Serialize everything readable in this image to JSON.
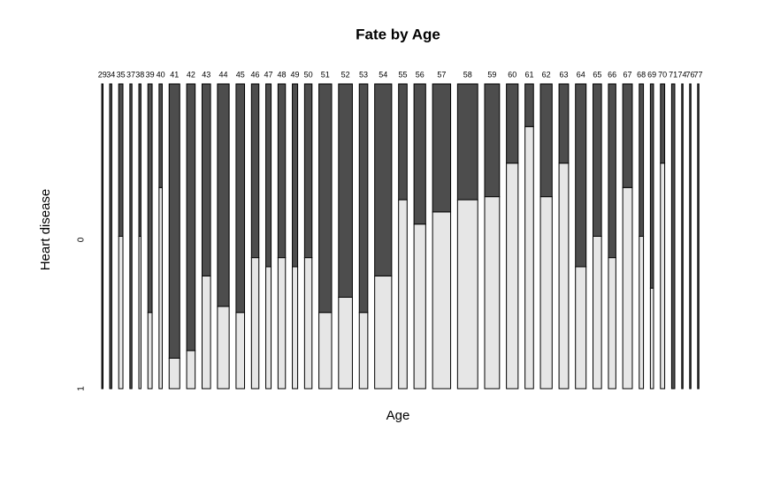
{
  "chart_data": {
    "type": "spine",
    "title": "Fate by Age",
    "x_label": "Age",
    "y_label": "Heart disease",
    "categories": [
      "29",
      "34",
      "35",
      "37",
      "38",
      "39",
      "40",
      "41",
      "42",
      "43",
      "44",
      "45",
      "46",
      "47",
      "48",
      "49",
      "50",
      "51",
      "52",
      "53",
      "54",
      "55",
      "56",
      "57",
      "58",
      "59",
      "60",
      "61",
      "62",
      "63",
      "64",
      "65",
      "66",
      "67",
      "68",
      "69",
      "70",
      "71",
      "74",
      "76",
      "77"
    ],
    "counts": [
      1,
      2,
      4,
      2,
      2,
      4,
      3,
      10,
      8,
      8,
      11,
      8,
      7,
      5,
      7,
      5,
      7,
      12,
      13,
      8,
      16,
      8,
      11,
      17,
      19,
      14,
      11,
      8,
      11,
      9,
      10,
      8,
      7,
      9,
      4,
      3,
      4,
      3,
      1,
      1,
      1
    ],
    "series": [
      {
        "name": "1",
        "color": "#e6e6e6",
        "values": [
          0,
          0,
          0.5,
          0,
          0.5,
          0.25,
          0.66,
          0.1,
          0.125,
          0.37,
          0.27,
          0.25,
          0.43,
          0.4,
          0.43,
          0.4,
          0.43,
          0.25,
          0.3,
          0.25,
          0.37,
          0.62,
          0.54,
          0.58,
          0.62,
          0.63,
          0.74,
          0.86,
          0.63,
          0.74,
          0.4,
          0.5,
          0.43,
          0.66,
          0.5,
          0.33,
          0.74,
          0,
          0,
          0,
          0
        ]
      },
      {
        "name": "0",
        "color": "#4d4d4d",
        "values": [
          1,
          1,
          0.5,
          1,
          0.5,
          0.75,
          0.34,
          0.9,
          0.875,
          0.63,
          0.73,
          0.75,
          0.57,
          0.6,
          0.57,
          0.6,
          0.57,
          0.75,
          0.7,
          0.75,
          0.63,
          0.38,
          0.46,
          0.42,
          0.38,
          0.37,
          0.26,
          0.14,
          0.37,
          0.26,
          0.6,
          0.5,
          0.57,
          0.34,
          0.5,
          0.67,
          0.26,
          1,
          1,
          1,
          1
        ]
      }
    ]
  }
}
